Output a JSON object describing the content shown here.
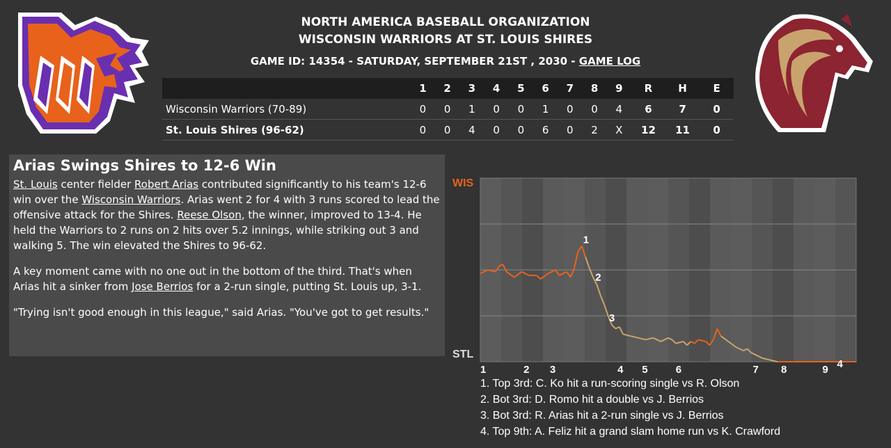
{
  "header": {
    "league": "NORTH AMERICA BASEBALL ORGANIZATION",
    "matchup": "WISCONSIN WARRIORS AT ST. LOUIS SHIRES",
    "game_info": "GAME ID: 14354 - SATURDAY, SEPTEMBER 21ST , 2030 -",
    "game_log_link": "GAME LOG"
  },
  "logos": {
    "away": {
      "name": "Wisconsin Warriors logo",
      "colors": [
        "#e8621c",
        "#6a2fb0",
        "#ffffff"
      ]
    },
    "home": {
      "name": "St. Louis Shires logo",
      "colors": [
        "#8c2431",
        "#c9a36d",
        "#ffffff"
      ]
    }
  },
  "linescore": {
    "headers": [
      "1",
      "2",
      "3",
      "4",
      "5",
      "6",
      "7",
      "8",
      "9",
      "R",
      "H",
      "E"
    ],
    "away": {
      "team": "Wisconsin Warriors (70-89)",
      "innings": [
        "0",
        "0",
        "1",
        "0",
        "0",
        "1",
        "0",
        "0",
        "4"
      ],
      "r": "6",
      "h": "7",
      "e": "0"
    },
    "home": {
      "team": "St. Louis Shires (96-62)",
      "innings": [
        "0",
        "0",
        "4",
        "0",
        "0",
        "6",
        "0",
        "2",
        "X"
      ],
      "r": "12",
      "h": "11",
      "e": "0"
    }
  },
  "article": {
    "headline": "Arias Swings Shires to 12-6 Win",
    "p1": {
      "link_city": "St. Louis",
      "t1": " center fielder ",
      "link_player": "Robert Arias",
      "t2": " contributed significantly to his team's 12-6 win over the ",
      "link_opponent": "Wisconsin Warriors",
      "t3": ". Arias went 2 for 4 with 3 runs scored to lead the offensive attack for the Shires. ",
      "link_winner": "Reese Olson",
      "t4": ", the winner, improved to 13-4. He held the Warriors to 2 runs on 2 hits over 5.2 innings, while striking out 3 and walking 5. The win elevated the Shires to 96-62."
    },
    "p2": {
      "t1": "A key moment came with no one out in the bottom of the third. That's when Arias hit a sinker from ",
      "link_pitcher": "Jose Berrios",
      "t2": " for a 2-run single, putting St. Louis up, 3-1."
    },
    "p3": "\"Trying isn't good enough in this league,\" said Arias. \"You've got to get results.\""
  },
  "chart_data": {
    "type": "line",
    "title": "",
    "y_top_label": "WIS",
    "y_bottom_label": "STL",
    "x_labels": [
      "1",
      "2",
      "3",
      "4",
      "5",
      "6",
      "7",
      "8",
      "9"
    ],
    "ylim": [
      0,
      1
    ],
    "colors": {
      "away": "#e8621c",
      "home": "#c9a36d",
      "label_away": "#e8621c",
      "label_home": "#dddddd"
    },
    "series": [
      {
        "points": [
          [
            0.0,
            0.48
          ],
          [
            0.02,
            0.5
          ],
          [
            0.04,
            0.49
          ],
          [
            0.05,
            0.52
          ],
          [
            0.06,
            0.53
          ],
          [
            0.07,
            0.49
          ],
          [
            0.09,
            0.46
          ],
          [
            0.11,
            0.49
          ],
          [
            0.13,
            0.47
          ],
          [
            0.15,
            0.47
          ],
          [
            0.16,
            0.45
          ],
          [
            0.18,
            0.48
          ],
          [
            0.2,
            0.5
          ],
          [
            0.21,
            0.47
          ],
          [
            0.23,
            0.49
          ],
          [
            0.24,
            0.46
          ],
          [
            0.25,
            0.51
          ],
          [
            0.26,
            0.6
          ],
          [
            0.27,
            0.63
          ],
          [
            0.28,
            0.57
          ],
          [
            0.29,
            0.51
          ],
          [
            0.3,
            0.46
          ],
          [
            0.31,
            0.42
          ],
          [
            0.32,
            0.36
          ],
          [
            0.33,
            0.31
          ],
          [
            0.34,
            0.25
          ],
          [
            0.35,
            0.2
          ],
          [
            0.36,
            0.18
          ],
          [
            0.37,
            0.19
          ],
          [
            0.38,
            0.15
          ],
          [
            0.4,
            0.14
          ],
          [
            0.42,
            0.13
          ],
          [
            0.44,
            0.12
          ],
          [
            0.46,
            0.13
          ],
          [
            0.48,
            0.11
          ],
          [
            0.5,
            0.13
          ],
          [
            0.51,
            0.12
          ],
          [
            0.52,
            0.1
          ],
          [
            0.54,
            0.11
          ],
          [
            0.55,
            0.09
          ],
          [
            0.56,
            0.11
          ],
          [
            0.57,
            0.1
          ],
          [
            0.58,
            0.12
          ],
          [
            0.6,
            0.11
          ],
          [
            0.61,
            0.09
          ],
          [
            0.62,
            0.12
          ],
          [
            0.63,
            0.18
          ],
          [
            0.64,
            0.14
          ],
          [
            0.66,
            0.11
          ],
          [
            0.68,
            0.08
          ],
          [
            0.7,
            0.06
          ],
          [
            0.71,
            0.07
          ],
          [
            0.72,
            0.05
          ],
          [
            0.74,
            0.03
          ],
          [
            0.75,
            0.02
          ],
          [
            0.77,
            0.01
          ],
          [
            0.79,
            0.0
          ],
          [
            0.82,
            0.0
          ],
          [
            0.86,
            0.0
          ],
          [
            0.9,
            0.0
          ],
          [
            0.95,
            0.0
          ],
          [
            1.0,
            0.0
          ]
        ]
      }
    ],
    "markers": [
      {
        "label": "1",
        "x": 0.27
      },
      {
        "label": "2",
        "x": 0.295
      },
      {
        "label": "3",
        "x": 0.335
      },
      {
        "label": "4",
        "x": 0.975
      }
    ]
  },
  "events": [
    "1. Top 3rd: C. Ko hit a run-scoring single vs R. Olson",
    "2. Bot 3rd: D. Romo hit a double vs J. Berrios",
    "3. Bot 3rd: R. Arias hit a 2-run single vs J. Berrios",
    "4. Top 9th: A. Feliz hit a grand slam home run vs K. Crawford"
  ]
}
